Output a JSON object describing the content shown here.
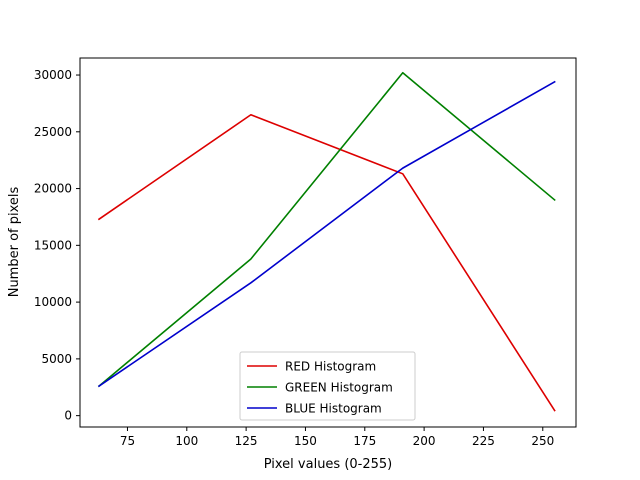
{
  "chart_data": {
    "type": "line",
    "title": "",
    "xlabel": "Pixel values (0-255)",
    "ylabel": "Number of pixels",
    "xlim": [
      55,
      264
    ],
    "ylim": [
      -1000,
      31500
    ],
    "xticks": [
      75,
      100,
      125,
      150,
      175,
      200,
      225,
      250
    ],
    "yticks": [
      0,
      5000,
      10000,
      15000,
      20000,
      25000,
      30000
    ],
    "grid": false,
    "legend_position": "lower center",
    "x": [
      63,
      127,
      191,
      255
    ],
    "series": [
      {
        "name": "RED Histogram",
        "color": "#dd0000",
        "values": [
          17300,
          26500,
          21300,
          450
        ]
      },
      {
        "name": "GREEN Histogram",
        "color": "#008000",
        "values": [
          2600,
          13800,
          30200,
          19000
        ]
      },
      {
        "name": "BLUE Histogram",
        "color": "#0000cc",
        "values": [
          2600,
          11700,
          21800,
          29400
        ]
      }
    ]
  }
}
